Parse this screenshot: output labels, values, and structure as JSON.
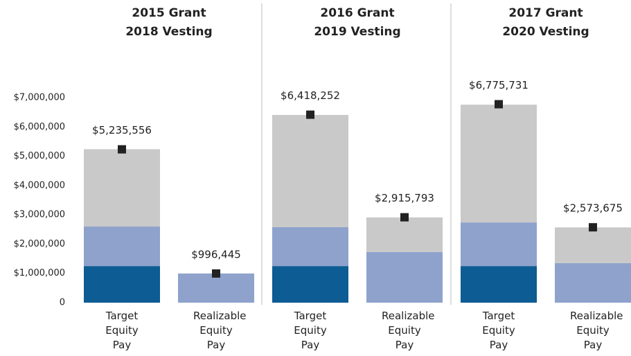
{
  "chart_data": {
    "type": "stacked_bar",
    "ylim": [
      0,
      7000000
    ],
    "yticks": [
      0,
      {
        "value": 1000000,
        "label": "$1,000,000"
      },
      {
        "value": 2000000,
        "label": "$2,000,000"
      },
      {
        "value": 3000000,
        "label": "$3,000,000"
      },
      {
        "value": 4000000,
        "label": "$4,000,000"
      },
      {
        "value": 5000000,
        "label": "$5,000,000"
      },
      {
        "value": 6000000,
        "label": "$6,000,000"
      },
      {
        "value": 7000000,
        "label": "$7,000,000"
      }
    ],
    "marker_color": "#222222",
    "groups": [
      {
        "title": [
          "2015 Grant",
          "2018 Vesting"
        ],
        "categories": [
          "Target Equity Pay",
          "Realizable Equity Pay"
        ],
        "series": [
          {
            "color": "#0d5c94",
            "values": [
              1250000,
              null
            ]
          },
          {
            "color": "#8ea2cc",
            "values": [
              1350000,
              996445
            ]
          },
          {
            "color": "#c9c9c9",
            "values": [
              2640000,
              null
            ]
          }
        ],
        "totals": [
          5235556,
          996445
        ],
        "total_labels": [
          "$5,235,556",
          "$996,445"
        ]
      },
      {
        "title": [
          "2016 Grant",
          "2019 Vesting"
        ],
        "categories": [
          "Target Equity Pay",
          "Realizable Equity Pay"
        ],
        "series": [
          {
            "color": "#0d5c94",
            "values": [
              1250000,
              null
            ]
          },
          {
            "color": "#8ea2cc",
            "values": [
              1330000,
              1730000
            ]
          },
          {
            "color": "#c9c9c9",
            "values": [
              3830000,
              1180000
            ]
          }
        ],
        "totals": [
          6418252,
          2915793
        ],
        "total_labels": [
          "$6,418,252",
          "$2,915,793"
        ]
      },
      {
        "title": [
          "2017 Grant",
          "2020 Vesting"
        ],
        "categories": [
          "Target Equity Pay",
          "Realizable Equity Pay"
        ],
        "series": [
          {
            "color": "#0d5c94",
            "values": [
              1250000,
              null
            ]
          },
          {
            "color": "#8ea2cc",
            "values": [
              1490000,
              1350000
            ]
          },
          {
            "color": "#c9c9c9",
            "values": [
              4020000,
              1220000
            ]
          }
        ],
        "totals": [
          6775731,
          2573675
        ],
        "total_labels": [
          "$6,775,731",
          "$2,573,675"
        ]
      }
    ]
  }
}
